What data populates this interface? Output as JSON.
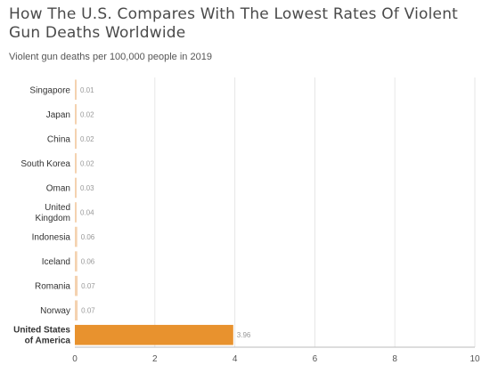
{
  "title": "How The U.S. Compares With The Lowest Rates Of Violent Gun Deaths Worldwide",
  "subtitle": "Violent gun deaths per 100,000 people in 2019",
  "colors": {
    "bar": "#f4d2b0",
    "highlight_bar": "#e8922e",
    "grid": "#e6e6e6",
    "axis": "#bbbbbb",
    "label": "#333333",
    "value": "#999999"
  },
  "chart_data": {
    "type": "bar",
    "orientation": "horizontal",
    "title": "How The U.S. Compares With The Lowest Rates Of Violent Gun Deaths Worldwide",
    "subtitle": "Violent gun deaths per 100,000 people in 2019",
    "categories": [
      [
        "Singapore"
      ],
      [
        "Japan"
      ],
      [
        "China"
      ],
      [
        "South Korea"
      ],
      [
        "Oman"
      ],
      [
        "United",
        "Kingdom"
      ],
      [
        "Indonesia"
      ],
      [
        "Iceland"
      ],
      [
        "Romania"
      ],
      [
        "Norway"
      ],
      [
        "United States",
        "of America"
      ]
    ],
    "values": [
      0.01,
      0.02,
      0.02,
      0.02,
      0.03,
      0.04,
      0.06,
      0.06,
      0.07,
      0.07,
      3.96
    ],
    "value_labels": [
      "0.01",
      "0.02",
      "0.02",
      "0.02",
      "0.03",
      "0.04",
      "0.06",
      "0.06",
      "0.07",
      "0.07",
      "3.96"
    ],
    "highlight": [
      "United States",
      "of America"
    ],
    "xlim": [
      0,
      10
    ],
    "xticks": [
      0,
      2,
      4,
      6,
      8,
      10
    ],
    "grid": true
  }
}
